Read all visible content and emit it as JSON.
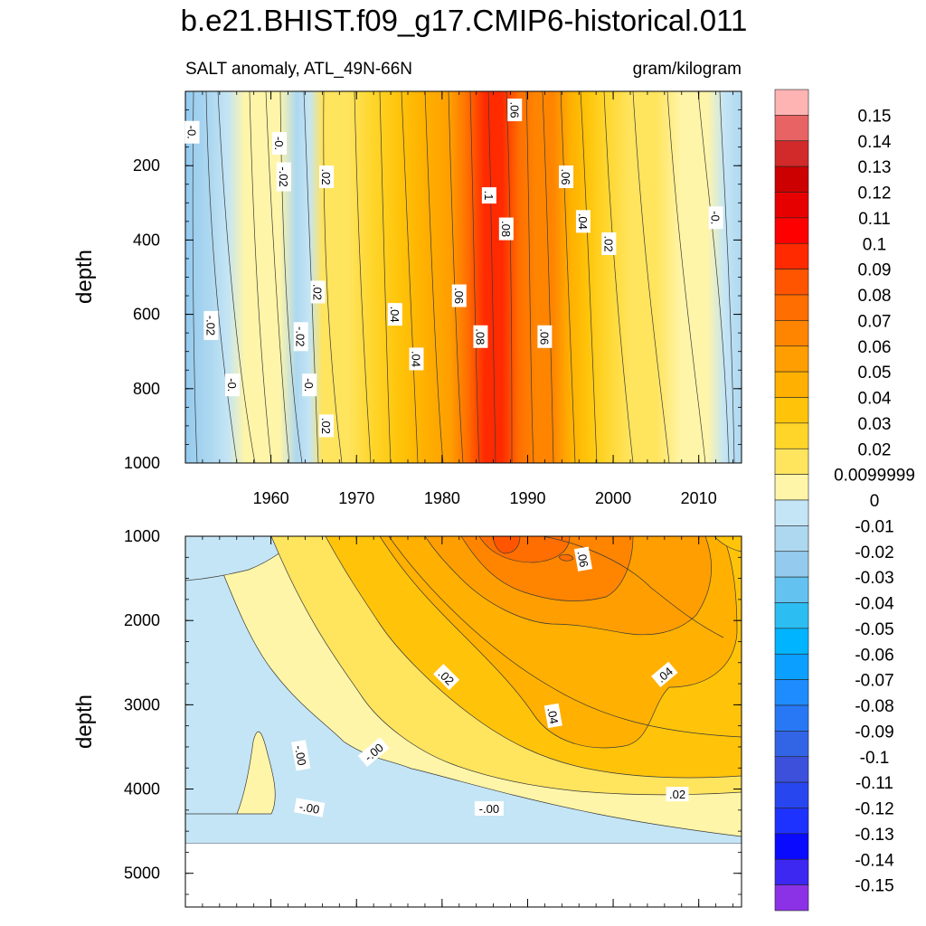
{
  "title": "b.e21.BHIST.f09_g17.CMIP6-historical.011",
  "subtitle_left": "SALT anomaly, ATL_49N-66N",
  "subtitle_right": "gram/kilogram",
  "chart_data": [
    {
      "type": "contour",
      "name": "upper-ocean",
      "ylabel": "depth",
      "xlim": [
        1950,
        2015
      ],
      "ylim": [
        1000,
        0
      ],
      "xticks": [
        1960,
        1970,
        1980,
        1990,
        2000,
        2010
      ],
      "xtick_labels": [
        "1960",
        "1970",
        "1980",
        "1990",
        "2000",
        "2010"
      ],
      "yticks": [
        200,
        400,
        600,
        800,
        1000
      ],
      "ytick_labels": [
        "200",
        "400",
        "600",
        "800",
        "1000"
      ],
      "profile": [
        {
          "year": 1950,
          "value": -0.03
        },
        {
          "year": 1953,
          "value": -0.02
        },
        {
          "year": 1955,
          "value": -0.008
        },
        {
          "year": 1957,
          "value": 0.004
        },
        {
          "year": 1959,
          "value": 0.008
        },
        {
          "year": 1961,
          "value": 0.004
        },
        {
          "year": 1963,
          "value": -0.012
        },
        {
          "year": 1964.5,
          "value": -0.005
        },
        {
          "year": 1966,
          "value": 0.012
        },
        {
          "year": 1969,
          "value": 0.018
        },
        {
          "year": 1972,
          "value": 0.025
        },
        {
          "year": 1975,
          "value": 0.037
        },
        {
          "year": 1978,
          "value": 0.046
        },
        {
          "year": 1981,
          "value": 0.058
        },
        {
          "year": 1983,
          "value": 0.072
        },
        {
          "year": 1985,
          "value": 0.09
        },
        {
          "year": 1987,
          "value": 0.092
        },
        {
          "year": 1989,
          "value": 0.072
        },
        {
          "year": 1991,
          "value": 0.066
        },
        {
          "year": 1993,
          "value": 0.061
        },
        {
          "year": 1995,
          "value": 0.048
        },
        {
          "year": 1997,
          "value": 0.03
        },
        {
          "year": 1999,
          "value": 0.022
        },
        {
          "year": 2002,
          "value": 0.016
        },
        {
          "year": 2005,
          "value": 0.011
        },
        {
          "year": 2008,
          "value": 0.006
        },
        {
          "year": 2011,
          "value": 0.003
        },
        {
          "year": 2013,
          "value": -0.004
        },
        {
          "year": 2015,
          "value": -0.012
        }
      ],
      "contour_labels": [
        {
          "text": "-0.",
          "year": 1950.8,
          "depth": 110,
          "rotate": 90
        },
        {
          "text": "-.02",
          "year": 1953,
          "depth": 630,
          "rotate": 90
        },
        {
          "text": "-0.",
          "year": 1955.5,
          "depth": 790,
          "rotate": 90
        },
        {
          "text": "-0.",
          "year": 1961,
          "depth": 140,
          "rotate": 90
        },
        {
          "text": "-.02",
          "year": 1961.5,
          "depth": 230,
          "rotate": 90
        },
        {
          "text": "-.02",
          "year": 1963.5,
          "depth": 660,
          "rotate": 90
        },
        {
          "text": ".02",
          "year": 1966.5,
          "depth": 230,
          "rotate": 90
        },
        {
          "text": "-0.",
          "year": 1964.5,
          "depth": 790,
          "rotate": 90
        },
        {
          "text": ".02",
          "year": 1965.5,
          "depth": 540,
          "rotate": 90
        },
        {
          "text": ".02",
          "year": 1966.5,
          "depth": 900,
          "rotate": 90
        },
        {
          "text": ".04",
          "year": 1974.5,
          "depth": 600,
          "rotate": 90
        },
        {
          "text": ".04",
          "year": 1977,
          "depth": 720,
          "rotate": 90
        },
        {
          "text": ".06",
          "year": 1982,
          "depth": 550,
          "rotate": 90
        },
        {
          "text": ".08",
          "year": 1984.5,
          "depth": 660,
          "rotate": 90
        },
        {
          "text": ".1",
          "year": 1985.5,
          "depth": 280,
          "rotate": 90
        },
        {
          "text": ".08",
          "year": 1987.5,
          "depth": 370,
          "rotate": 90
        },
        {
          "text": ".06",
          "year": 1988.5,
          "depth": 50,
          "rotate": 90
        },
        {
          "text": ".06",
          "year": 1992,
          "depth": 660,
          "rotate": 90
        },
        {
          "text": ".06",
          "year": 1994.5,
          "depth": 230,
          "rotate": 90
        },
        {
          "text": ".04",
          "year": 1996.5,
          "depth": 350,
          "rotate": 90
        },
        {
          "text": ".02",
          "year": 1999.5,
          "depth": 410,
          "rotate": 90
        },
        {
          "text": "-0.",
          "year": 2012,
          "depth": 340,
          "rotate": 90
        }
      ]
    },
    {
      "type": "contour",
      "name": "deep-ocean",
      "ylabel": "depth",
      "xlim": [
        1950,
        2015
      ],
      "ylim": [
        5400,
        1000
      ],
      "ocean_floor_depth": 4620,
      "yticks": [
        1000,
        2000,
        3000,
        4000,
        5000
      ],
      "ytick_labels": [
        "1000",
        "2000",
        "3000",
        "4000",
        "5000"
      ],
      "xticks": [
        1960,
        1970,
        1980,
        1990,
        2000,
        2010
      ],
      "contour_labels": [
        {
          "text": ".06",
          "year": 1996.5,
          "depth": 1270,
          "rotate": 80
        },
        {
          "text": ".02",
          "year": 1980.5,
          "depth": 2670,
          "rotate": 45
        },
        {
          "text": ".04",
          "year": 2006,
          "depth": 2640,
          "rotate": -40
        },
        {
          "text": ".04",
          "year": 1993,
          "depth": 3130,
          "rotate": 80
        },
        {
          "text": "-.00",
          "year": 1963.5,
          "depth": 3600,
          "rotate": 80
        },
        {
          "text": "-.00",
          "year": 1972,
          "depth": 3560,
          "rotate": -40
        },
        {
          "text": "-.00",
          "year": 1964.5,
          "depth": 4220,
          "rotate": 10
        },
        {
          "text": "-.00",
          "year": 1985.5,
          "depth": 4230,
          "rotate": 0
        },
        {
          "text": ".02",
          "year": 2007.5,
          "depth": 4060,
          "rotate": 0
        }
      ]
    }
  ],
  "colorbar": {
    "labels": [
      "0.15",
      "0.14",
      "0.13",
      "0.12",
      "0.11",
      "0.1",
      "0.09",
      "0.08",
      "0.07",
      "0.06",
      "0.05",
      "0.04",
      "0.03",
      "0.02",
      "0.0099999",
      "0",
      "-0.01",
      "-0.02",
      "-0.03",
      "-0.04",
      "-0.05",
      "-0.06",
      "-0.07",
      "-0.08",
      "-0.09",
      "-0.1",
      "-0.11",
      "-0.12",
      "-0.13",
      "-0.14",
      "-0.15"
    ],
    "colors": [
      "#FFB4B4",
      "#E86464",
      "#D22A2A",
      "#CC0000",
      "#E60000",
      "#FF0000",
      "#FF2A00",
      "#FF5500",
      "#FF6E00",
      "#FF8500",
      "#FF9E00",
      "#FFB000",
      "#FFC40A",
      "#FFD52A",
      "#FFE45E",
      "#FFF5A8",
      "#C4E5F5",
      "#AED8F0",
      "#94CAEE",
      "#64C2F0",
      "#2CBEF2",
      "#00B4FF",
      "#0BA0FF",
      "#1E8CFF",
      "#2878F5",
      "#3264E6",
      "#3C50DC",
      "#2846F0",
      "#1E32FF",
      "#0A0AFF",
      "#3C28F0",
      "#8C32E6"
    ]
  }
}
